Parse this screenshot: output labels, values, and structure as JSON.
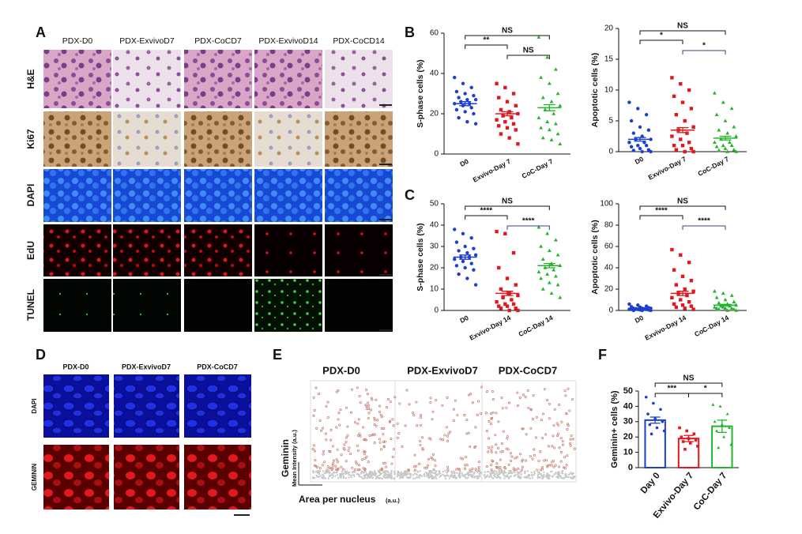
{
  "panel_labels": [
    "A",
    "B",
    "C",
    "D",
    "E",
    "F"
  ],
  "panel_a": {
    "columns": [
      "PDX-D0",
      "PDX-ExvivoD7",
      "PDX-CoCD7",
      "PDX-ExvivoD14",
      "PDX-CoCD14"
    ],
    "rows": [
      "H&E",
      "Ki67",
      "DAPI",
      "EdU",
      "TUNEL"
    ]
  },
  "panel_d": {
    "columns": [
      "PDX-D0",
      "PDX-ExvivoD7",
      "PDX-CoCD7"
    ],
    "rows": [
      "DAPI",
      "GEMININ"
    ]
  },
  "panel_e": {
    "columns": [
      "PDX-D0",
      "PDX-ExvivoD7",
      "PDX-CoCD7"
    ],
    "ylabel": "Geminin",
    "ylabel_sub": "Mean Intensity (a.u.)",
    "xlabel": "Area per nucleus",
    "xlabel_sub": "(a.u.)"
  },
  "chart_data": [
    {
      "type": "dot",
      "ylabel": "S-phase cells (%)",
      "ylim": [
        0,
        60
      ],
      "yticks": [
        0,
        20,
        40,
        60
      ],
      "groups": [
        {
          "name": "D0",
          "color": "#1a3fd1",
          "marker": "circle",
          "mean": 25,
          "error": 1,
          "points": [
            38,
            35,
            33,
            31,
            30,
            29,
            28,
            27,
            27,
            26,
            25,
            25,
            24,
            23,
            22,
            21,
            20,
            18,
            16,
            15
          ]
        },
        {
          "name": "Exvivo-Day 7",
          "color": "#e0191f",
          "marker": "square",
          "mean": 20,
          "error": 1,
          "points": [
            35,
            33,
            30,
            28,
            26,
            24,
            22,
            21,
            20,
            19,
            18,
            17,
            16,
            15,
            14,
            13,
            12,
            10,
            8,
            5
          ]
        },
        {
          "name": "CoC-Day 7",
          "color": "#21b52a",
          "marker": "triangle",
          "mean": 23,
          "error": 1.5,
          "points": [
            58,
            48,
            42,
            38,
            35,
            30,
            28,
            26,
            24,
            22,
            20,
            18,
            16,
            15,
            13,
            12,
            10,
            8,
            7,
            5
          ]
        }
      ],
      "brackets": [
        {
          "from": 0,
          "to": 2,
          "label": "NS",
          "color": "#111111"
        },
        {
          "from": 0,
          "to": 1,
          "label": "**",
          "color": "#111111"
        },
        {
          "from": 1,
          "to": 2,
          "label": "NS",
          "color": "#111111"
        }
      ]
    },
    {
      "type": "dot",
      "ylabel": "Apoptotic cells (%)",
      "ylim": [
        0,
        20
      ],
      "yticks": [
        0,
        5,
        10,
        15,
        20
      ],
      "groups": [
        {
          "name": "D0",
          "color": "#1a3fd1",
          "marker": "circle",
          "mean": 2,
          "error": 0.3,
          "points": [
            8,
            7,
            6,
            5,
            4,
            3.5,
            3,
            2.5,
            2,
            2,
            1.5,
            1.5,
            1,
            1,
            0.8,
            0.5,
            0.3,
            0.2,
            0,
            0
          ]
        },
        {
          "name": "Exvivo-Day 7",
          "color": "#e0191f",
          "marker": "square",
          "mean": 3.5,
          "error": 0.4,
          "points": [
            12,
            11,
            10,
            9,
            8,
            7,
            6,
            5,
            4,
            3.5,
            3,
            2.5,
            2,
            1.5,
            1,
            1,
            0.5,
            0.3,
            0,
            0
          ]
        },
        {
          "name": "CoC-Day 7",
          "color": "#21b52a",
          "marker": "triangle",
          "mean": 2.2,
          "error": 0.3,
          "points": [
            9.5,
            8,
            7,
            6,
            5,
            4,
            3.5,
            3,
            2.5,
            2,
            1.5,
            1.5,
            1,
            1,
            0.8,
            0.5,
            0.3,
            0.2,
            0,
            0
          ]
        }
      ],
      "brackets": [
        {
          "from": 0,
          "to": 2,
          "label": "NS",
          "color": "#111111"
        },
        {
          "from": 0,
          "to": 1,
          "label": "*",
          "color": "#111111"
        },
        {
          "from": 1,
          "to": 2,
          "label": "*",
          "color": "#3b3f7a"
        }
      ]
    },
    {
      "type": "dot",
      "ylabel": "S-phase cells (%)",
      "ylim": [
        0,
        50
      ],
      "yticks": [
        0,
        10,
        20,
        30,
        40,
        50
      ],
      "groups": [
        {
          "name": "D0",
          "color": "#1a3fd1",
          "marker": "circle",
          "mean": 25,
          "error": 1,
          "points": [
            38,
            36,
            34,
            32,
            30,
            29,
            28,
            27,
            26,
            25,
            25,
            24,
            23,
            22,
            21,
            20,
            19,
            17,
            15,
            12
          ]
        },
        {
          "name": "Exvivo-Day 14",
          "color": "#e0191f",
          "marker": "square",
          "mean": 8,
          "error": 1,
          "points": [
            37,
            36,
            27,
            20,
            15,
            12,
            10,
            8,
            7,
            6,
            5,
            4,
            3,
            3,
            2,
            2,
            1,
            1,
            0,
            0
          ]
        },
        {
          "name": "CoC-Day 14",
          "color": "#21b52a",
          "marker": "triangle",
          "mean": 21,
          "error": 1,
          "points": [
            39,
            36,
            33,
            30,
            28,
            26,
            24,
            22,
            21,
            20,
            19,
            18,
            17,
            16,
            15,
            13,
            12,
            10,
            8,
            6
          ]
        }
      ],
      "brackets": [
        {
          "from": 0,
          "to": 2,
          "label": "NS",
          "color": "#111111"
        },
        {
          "from": 0,
          "to": 1,
          "label": "****",
          "color": "#111111"
        },
        {
          "from": 1,
          "to": 2,
          "label": "****",
          "color": "#3b3f7a"
        }
      ]
    },
    {
      "type": "dot",
      "ylabel": "Apoptotic cells (%)",
      "ylim": [
        0,
        100
      ],
      "yticks": [
        0,
        20,
        40,
        60,
        80,
        100
      ],
      "groups": [
        {
          "name": "D0",
          "color": "#1a3fd1",
          "marker": "circle",
          "mean": 2,
          "error": 0.3,
          "points": [
            6,
            5,
            4,
            3.5,
            3,
            2.5,
            2,
            2,
            2,
            1.5,
            1.5,
            1,
            1,
            1,
            1,
            0.5,
            0.5,
            0,
            0,
            0
          ]
        },
        {
          "name": "Exvivo-Day 14",
          "color": "#e0191f",
          "marker": "square",
          "mean": 16,
          "error": 2,
          "points": [
            57,
            52,
            45,
            38,
            32,
            28,
            24,
            20,
            18,
            16,
            14,
            12,
            10,
            8,
            6,
            5,
            4,
            3,
            2,
            1
          ]
        },
        {
          "name": "CoC-Day 14",
          "color": "#21b52a",
          "marker": "triangle",
          "mean": 5,
          "error": 0.7,
          "points": [
            18,
            16,
            14,
            12,
            10,
            8,
            7,
            6,
            5,
            4,
            4,
            3,
            3,
            2,
            2,
            2,
            1,
            1,
            0,
            0
          ]
        }
      ],
      "brackets": [
        {
          "from": 0,
          "to": 2,
          "label": "NS",
          "color": "#111111"
        },
        {
          "from": 0,
          "to": 1,
          "label": "****",
          "color": "#111111"
        },
        {
          "from": 1,
          "to": 2,
          "label": "****",
          "color": "#3b3f7a"
        }
      ]
    },
    {
      "type": "bar",
      "ylabel": "Geminin+ cells (%)",
      "ylim": [
        0,
        50
      ],
      "yticks": [
        0,
        10,
        20,
        30,
        40,
        50
      ],
      "groups": [
        {
          "name": "Day 0",
          "color": "#1a3fd1",
          "marker": "circle",
          "mean": 31,
          "error": 2,
          "points": [
            46,
            42,
            38,
            35,
            32,
            30,
            28,
            26,
            24,
            22
          ]
        },
        {
          "name": "Exvivo-Day 7",
          "color": "#e0191f",
          "marker": "square",
          "mean": 19,
          "error": 2,
          "points": [
            26,
            24,
            22,
            20,
            19,
            18,
            17,
            16,
            14,
            12
          ]
        },
        {
          "name": "CoC-Day 7",
          "color": "#21b52a",
          "marker": "triangle",
          "mean": 27,
          "error": 4,
          "points": [
            41,
            40,
            35,
            30,
            28,
            26,
            24,
            20,
            15,
            13
          ]
        }
      ],
      "brackets": [
        {
          "from": 0,
          "to": 2,
          "label": "NS",
          "color": "#111111"
        },
        {
          "from": 0,
          "to": 1,
          "label": "***",
          "color": "#111111"
        },
        {
          "from": 1,
          "to": 2,
          "label": "*",
          "color": "#111111"
        }
      ]
    }
  ]
}
